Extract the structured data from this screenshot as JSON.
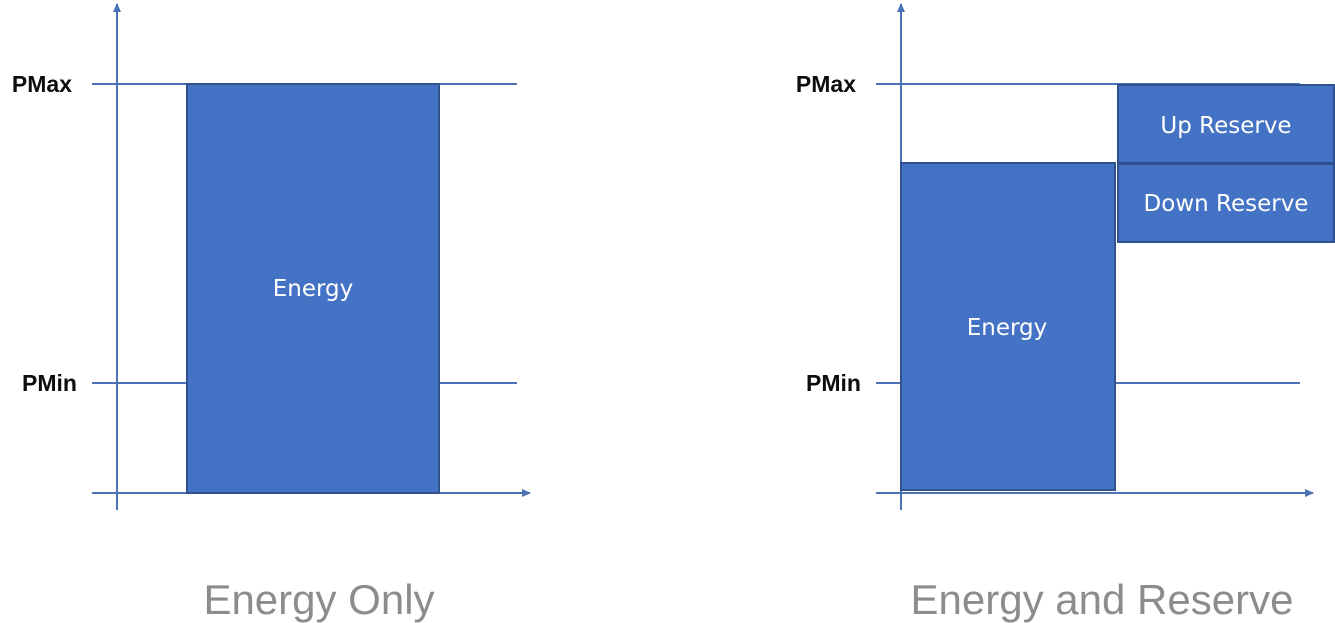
{
  "colors": {
    "axis": "#4a72b5",
    "block_fill": "#4472c4",
    "block_border": "#2f528f",
    "caption": "#8c8c8c",
    "block_text": "#ffffff",
    "level_text": "#0d0d0d"
  },
  "left_panel": {
    "pmax_label": "PMax",
    "pmin_label": "PMin",
    "energy_label": "Energy",
    "caption": "Energy Only"
  },
  "right_panel": {
    "pmax_label": "PMax",
    "pmin_label": "PMin",
    "energy_label": "Energy",
    "up_reserve_label": "Up Reserve",
    "down_reserve_label": "Down Reserve",
    "caption": "Energy and Reserve"
  }
}
